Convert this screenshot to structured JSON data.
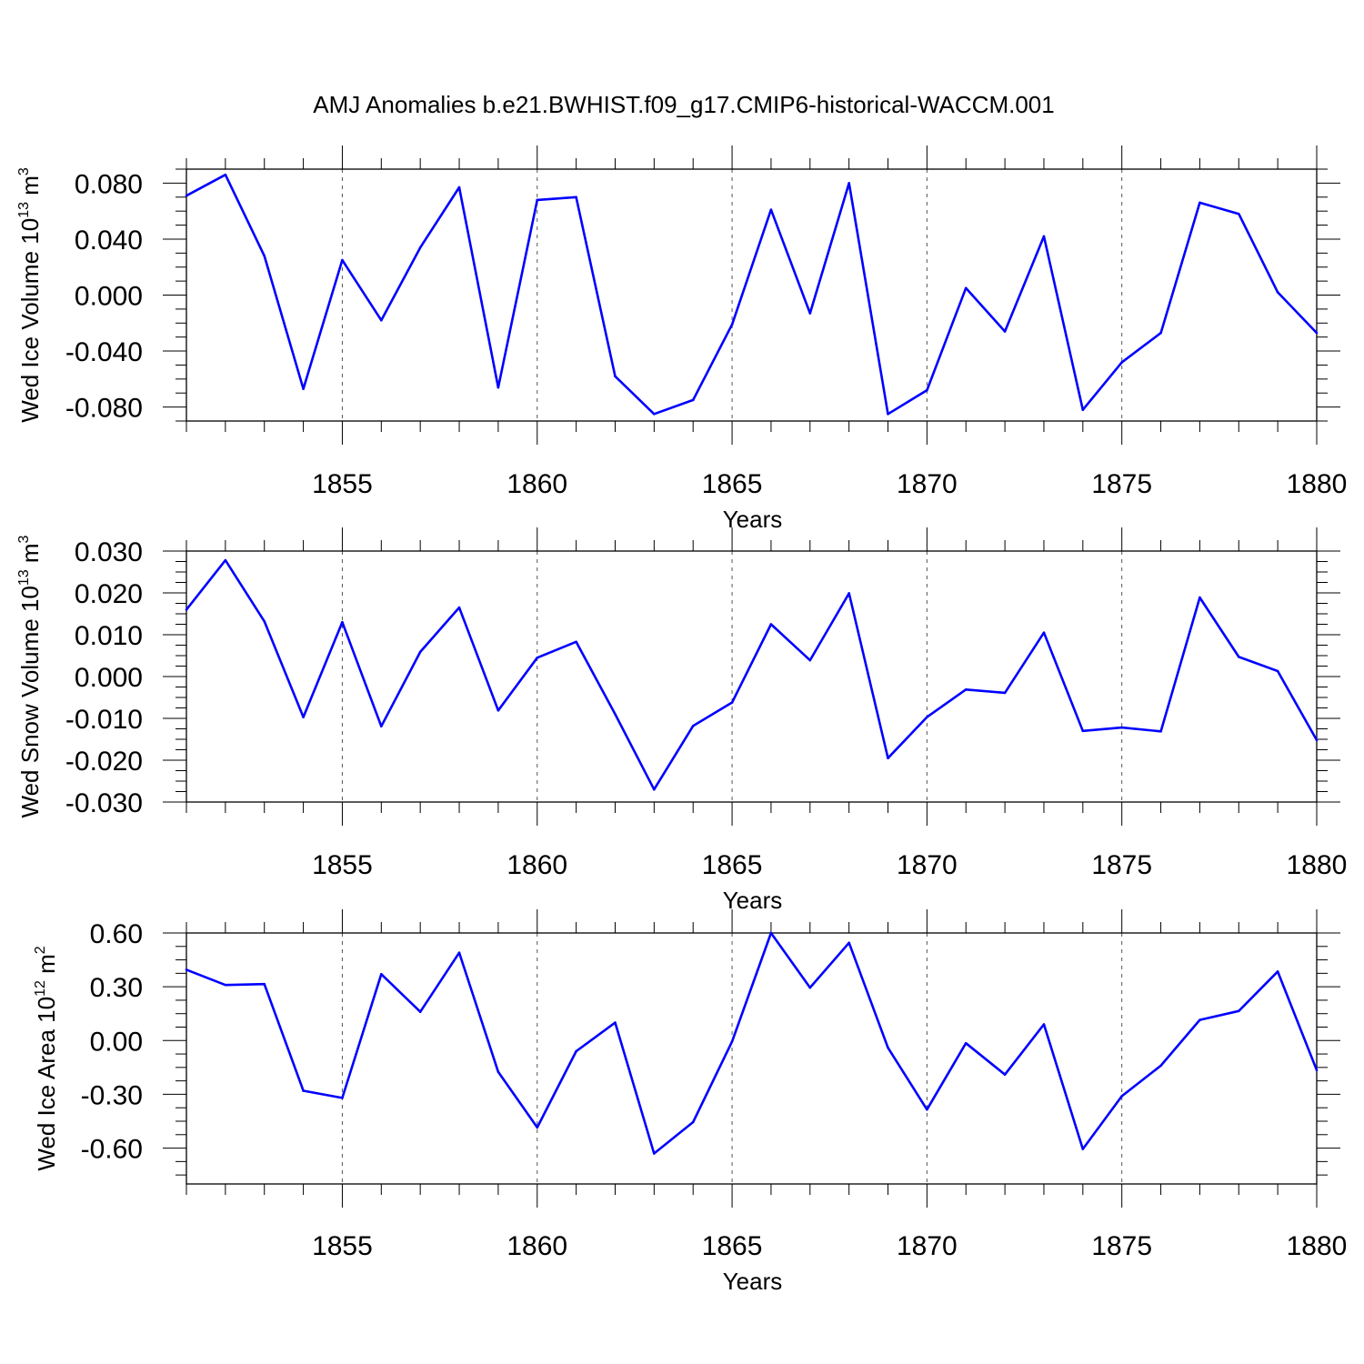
{
  "title": "AMJ Anomalies b.e21.BWHIST.f09_g17.CMIP6-historical-WACCM.001",
  "colors": {
    "line": "#0000ff",
    "axis": "#000000",
    "grid": "#555555"
  },
  "chart_data": [
    {
      "type": "line",
      "xlabel": "Years",
      "ylabel": {
        "pre": "Wed Ice Volume 10",
        "exp": "13",
        "mid": " m",
        "unit_exp": "3"
      },
      "xlim": [
        1851,
        1880
      ],
      "ylim": [
        -0.09,
        0.09
      ],
      "x_ticks": [
        1855,
        1860,
        1865,
        1870,
        1875,
        1880
      ],
      "x_tick_labels": [
        "1855",
        "1860",
        "1865",
        "1870",
        "1875",
        "1880"
      ],
      "y_ticks": [
        0.08,
        0.04,
        0.0,
        -0.04,
        -0.08
      ],
      "y_tick_labels": [
        "0.080",
        "0.040",
        "0.000",
        "-0.040",
        "-0.080"
      ],
      "y_minor_step": 0.01,
      "grid": "vertical dashed at major x ticks",
      "x": [
        1851,
        1852,
        1853,
        1854,
        1855,
        1856,
        1857,
        1858,
        1859,
        1860,
        1861,
        1862,
        1863,
        1864,
        1865,
        1866,
        1867,
        1868,
        1869,
        1870,
        1871,
        1872,
        1873,
        1874,
        1875,
        1876,
        1877,
        1878,
        1879,
        1880
      ],
      "values": [
        0.071,
        0.086,
        0.028,
        -0.067,
        0.025,
        -0.018,
        0.034,
        0.077,
        -0.066,
        0.068,
        0.07,
        -0.058,
        -0.085,
        -0.075,
        -0.021,
        0.061,
        -0.013,
        0.08,
        -0.085,
        -0.068,
        0.005,
        -0.026,
        0.042,
        -0.082,
        -0.048,
        -0.027,
        0.066,
        0.058,
        0.002,
        -0.027
      ]
    },
    {
      "type": "line",
      "xlabel": "Years",
      "ylabel": {
        "pre": "Wed Snow Volume 10",
        "exp": "13",
        "mid": " m",
        "unit_exp": "3"
      },
      "xlim": [
        1851,
        1880
      ],
      "ylim": [
        -0.03,
        0.03
      ],
      "x_ticks": [
        1855,
        1860,
        1865,
        1870,
        1875,
        1880
      ],
      "x_tick_labels": [
        "1855",
        "1860",
        "1865",
        "1870",
        "1875",
        "1880"
      ],
      "y_ticks": [
        0.03,
        0.02,
        0.01,
        0.0,
        -0.01,
        -0.02,
        -0.03
      ],
      "y_tick_labels": [
        "0.030",
        "0.020",
        "0.010",
        "0.000",
        "-0.010",
        "-0.020",
        "-0.030"
      ],
      "y_minor_step": 0.0025,
      "grid": "vertical dashed at major x ticks",
      "x": [
        1851,
        1852,
        1853,
        1854,
        1855,
        1856,
        1857,
        1858,
        1859,
        1860,
        1861,
        1862,
        1863,
        1864,
        1865,
        1866,
        1867,
        1868,
        1869,
        1870,
        1871,
        1872,
        1873,
        1874,
        1875,
        1876,
        1877,
        1878,
        1879,
        1880
      ],
      "values": [
        0.016,
        0.0278,
        0.0132,
        -0.0097,
        0.013,
        -0.0119,
        0.0059,
        0.0165,
        -0.0081,
        0.0045,
        0.0083,
        -0.009,
        -0.027,
        -0.0118,
        -0.0062,
        0.0125,
        0.0039,
        0.0199,
        -0.0195,
        -0.0097,
        -0.0031,
        -0.0039,
        0.0105,
        -0.013,
        -0.0122,
        -0.0131,
        0.0189,
        0.0047,
        0.0013,
        -0.0152
      ]
    },
    {
      "type": "line",
      "xlabel": "Years",
      "ylabel": {
        "pre": "Wed Ice Area 10",
        "exp": "12",
        "mid": " m",
        "unit_exp": "2"
      },
      "xlim": [
        1851,
        1880
      ],
      "ylim": [
        -0.8,
        0.6
      ],
      "x_ticks": [
        1855,
        1860,
        1865,
        1870,
        1875,
        1880
      ],
      "x_tick_labels": [
        "1855",
        "1860",
        "1865",
        "1870",
        "1875",
        "1880"
      ],
      "y_ticks": [
        0.6,
        0.3,
        0.0,
        -0.3,
        -0.6
      ],
      "y_tick_labels": [
        "0.60",
        "0.30",
        "0.00",
        "-0.30",
        "-0.60"
      ],
      "y_minor_step": 0.075,
      "grid": "vertical dashed at major x ticks",
      "x": [
        1851,
        1852,
        1853,
        1854,
        1855,
        1856,
        1857,
        1858,
        1859,
        1860,
        1861,
        1862,
        1863,
        1864,
        1865,
        1866,
        1867,
        1868,
        1869,
        1870,
        1871,
        1872,
        1873,
        1874,
        1875,
        1876,
        1877,
        1878,
        1879,
        1880
      ],
      "values": [
        0.395,
        0.31,
        0.315,
        -0.28,
        -0.32,
        0.37,
        0.16,
        0.49,
        -0.175,
        -0.485,
        -0.06,
        0.1,
        -0.63,
        -0.455,
        -0.005,
        0.6,
        0.295,
        0.545,
        -0.04,
        -0.385,
        -0.015,
        -0.19,
        0.09,
        -0.605,
        -0.31,
        -0.14,
        0.115,
        0.165,
        0.385,
        -0.165
      ]
    }
  ]
}
